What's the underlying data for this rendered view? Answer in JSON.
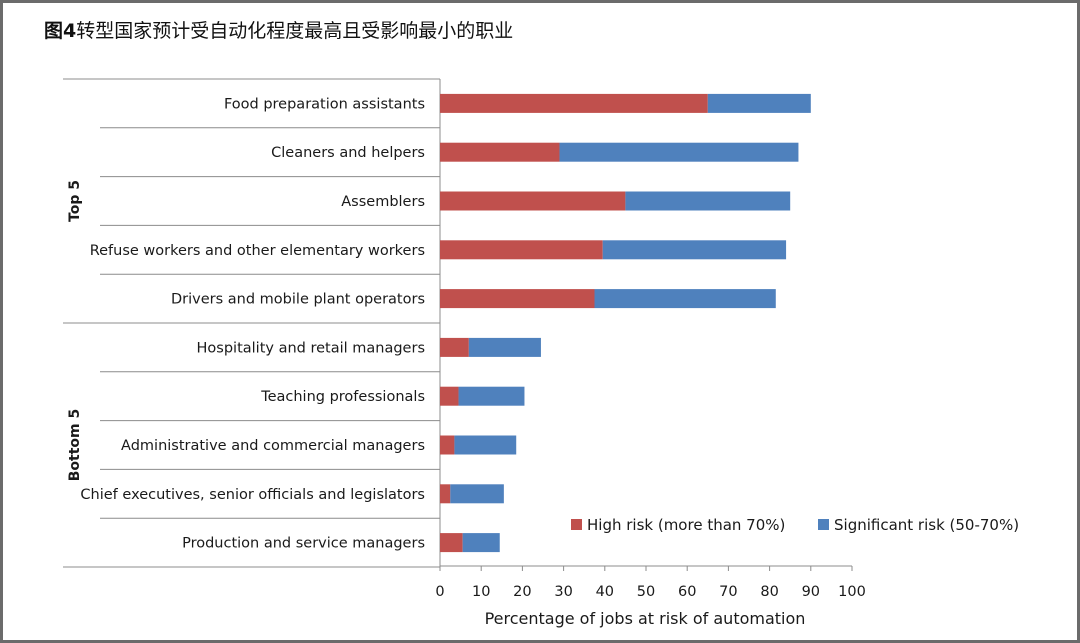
{
  "title": {
    "prefix": "图4",
    "text": "转型国家预计受自动化程度最高且受影响最小的职业"
  },
  "colors": {
    "high_risk": "#c0504d",
    "significant_risk": "#4f81bd"
  },
  "chart_data": {
    "type": "bar",
    "orientation": "horizontal",
    "stacked": true,
    "categories": [
      "Food preparation assistants",
      "Cleaners and helpers",
      "Assemblers",
      "Refuse workers and other elementary workers",
      "Drivers and mobile plant operators",
      "Hospitality and retail managers",
      "Teaching professionals",
      "Administrative and commercial managers",
      "Chief executives, senior officials and legislators",
      "Production and service managers"
    ],
    "groups": [
      {
        "label": "Top 5",
        "count": 5
      },
      {
        "label": "Bottom 5",
        "count": 5
      }
    ],
    "series": [
      {
        "name": "High risk (more than 70%)",
        "values": [
          65,
          29,
          45,
          39.5,
          37.5,
          7,
          4.5,
          3.5,
          2.5,
          5.5
        ]
      },
      {
        "name": "Significant risk (50-70%)",
        "values": [
          25,
          58,
          40,
          44.5,
          44,
          17.5,
          16,
          15,
          13,
          9
        ]
      }
    ],
    "xlabel": "Percentage of jobs at risk of automation",
    "ylabel": "",
    "xlim": [
      0,
      100
    ],
    "xticks": [
      0,
      10,
      20,
      30,
      40,
      50,
      60,
      70,
      80,
      90,
      100
    ],
    "grid": false,
    "legend_position": "bottom-right"
  }
}
